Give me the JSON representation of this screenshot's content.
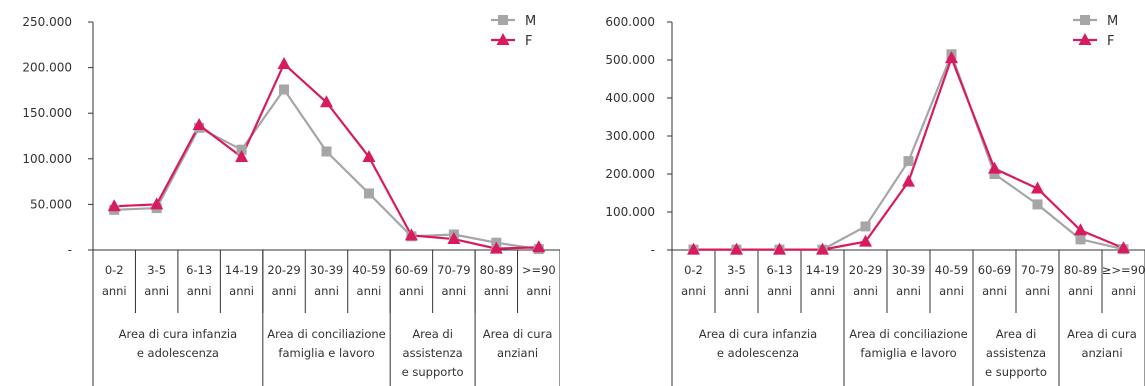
{
  "colors": {
    "M": "#a6a6a6",
    "F": "#d81b60",
    "axis": "#333333"
  },
  "chart_data": [
    {
      "type": "line",
      "title": "",
      "ylim": [
        0,
        250000
      ],
      "yticks": [
        "-",
        "50.000",
        "100.000",
        "150.000",
        "200.000",
        "250.000"
      ],
      "categories": [
        "0-2\nanni",
        "3-5\nanni",
        "6-13\nanni",
        "14-19\nanni",
        "20-29\nanni",
        "30-39\nanni",
        "40-59\nanni",
        "60-69\nanni",
        "70-79\nanni",
        "80-89\nanni",
        ">=90\nanni"
      ],
      "groups": [
        {
          "label": "Area di cura infanzia\ne adolescenza",
          "span": 4
        },
        {
          "label": "Area di conciliazione\nfamiglia e lavoro",
          "span": 3
        },
        {
          "label": "Area di\nassistenza\ne supporto",
          "span": 2
        },
        {
          "label": "Area di cura\nanziani",
          "span": 2
        }
      ],
      "legend_position": "top-right",
      "grid": false,
      "series": [
        {
          "name": "M",
          "marker": "square",
          "values": [
            44000,
            46000,
            134000,
            110000,
            176000,
            108000,
            62000,
            15000,
            17000,
            8000,
            1000
          ]
        },
        {
          "name": "F",
          "marker": "triangle",
          "values": [
            48000,
            50000,
            137000,
            102000,
            204000,
            162000,
            102000,
            16000,
            12000,
            1500,
            3000
          ]
        }
      ]
    },
    {
      "type": "line",
      "title": "",
      "ylim": [
        0,
        600000
      ],
      "yticks": [
        "-",
        "100.000",
        "200.000",
        "300.000",
        "400.000",
        "500.000",
        "600.000"
      ],
      "categories": [
        "0-2\nanni",
        "3-5\nanni",
        "6-13\nanni",
        "14-19\nanni",
        "20-29\nanni",
        "30-39\nanni",
        "40-59\nanni",
        "60-69\nanni",
        "70-79\nanni",
        "80-89\nanni",
        "≥>=90\nanni"
      ],
      "groups": [
        {
          "label": "Area di cura infanzia\ne adolescenza",
          "span": 4
        },
        {
          "label": "Area di conciliazione\nfamiglia e lavoro",
          "span": 3
        },
        {
          "label": "Area di\nassistenza\ne supporto",
          "span": 2
        },
        {
          "label": "Area di cura\nanziani",
          "span": 2
        }
      ],
      "legend_position": "top-right",
      "grid": false,
      "series": [
        {
          "name": "M",
          "marker": "square",
          "values": [
            1000,
            1000,
            1000,
            1000,
            62000,
            234000,
            515000,
            200000,
            120000,
            28000,
            2000
          ]
        },
        {
          "name": "F",
          "marker": "triangle",
          "values": [
            1000,
            1000,
            1000,
            1000,
            22000,
            180000,
            505000,
            214000,
            162000,
            52000,
            5000
          ]
        }
      ]
    }
  ]
}
